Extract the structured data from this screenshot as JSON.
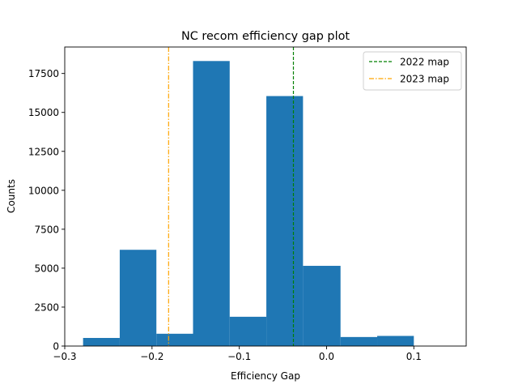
{
  "chart_data": {
    "type": "bar",
    "title": "NC recom efficiency gap plot",
    "xlabel": "Efficiency Gap",
    "ylabel": "Counts",
    "xlim": [
      -0.3,
      0.16
    ],
    "ylim": [
      0,
      19200
    ],
    "x_ticks": [
      -0.3,
      -0.2,
      -0.1,
      0.0,
      0.1
    ],
    "x_tick_labels": [
      "−0.3",
      "−0.2",
      "−0.1",
      "0.0",
      "0.1"
    ],
    "y_ticks": [
      0,
      2500,
      5000,
      7500,
      10000,
      12500,
      15000,
      17500
    ],
    "y_tick_labels": [
      "0",
      "2500",
      "5000",
      "7500",
      "10000",
      "12500",
      "15000",
      "17500"
    ],
    "bar_color": "#1f77b4",
    "bins": [
      {
        "x0": -0.279,
        "x1": -0.237,
        "count": 520
      },
      {
        "x0": -0.237,
        "x1": -0.195,
        "count": 6180
      },
      {
        "x0": -0.195,
        "x1": -0.153,
        "count": 790
      },
      {
        "x0": -0.153,
        "x1": -0.111,
        "count": 18300
      },
      {
        "x0": -0.111,
        "x1": -0.069,
        "count": 1880
      },
      {
        "x0": -0.069,
        "x1": -0.027,
        "count": 16050
      },
      {
        "x0": -0.027,
        "x1": 0.016,
        "count": 5150
      },
      {
        "x0": 0.016,
        "x1": 0.058,
        "count": 580
      },
      {
        "x0": 0.058,
        "x1": 0.1,
        "count": 650
      },
      {
        "x0": 0.1,
        "x1": 0.142,
        "count": 0
      }
    ],
    "vlines": [
      {
        "label": "2022 map",
        "x": -0.038,
        "color": "#008000",
        "style": "dashed"
      },
      {
        "label": "2023 map",
        "x": -0.181,
        "color": "#ffa500",
        "style": "dashdot"
      }
    ],
    "legend": {
      "placement": "top-right",
      "entries": [
        "2022 map",
        "2023 map"
      ]
    },
    "grid": false
  }
}
